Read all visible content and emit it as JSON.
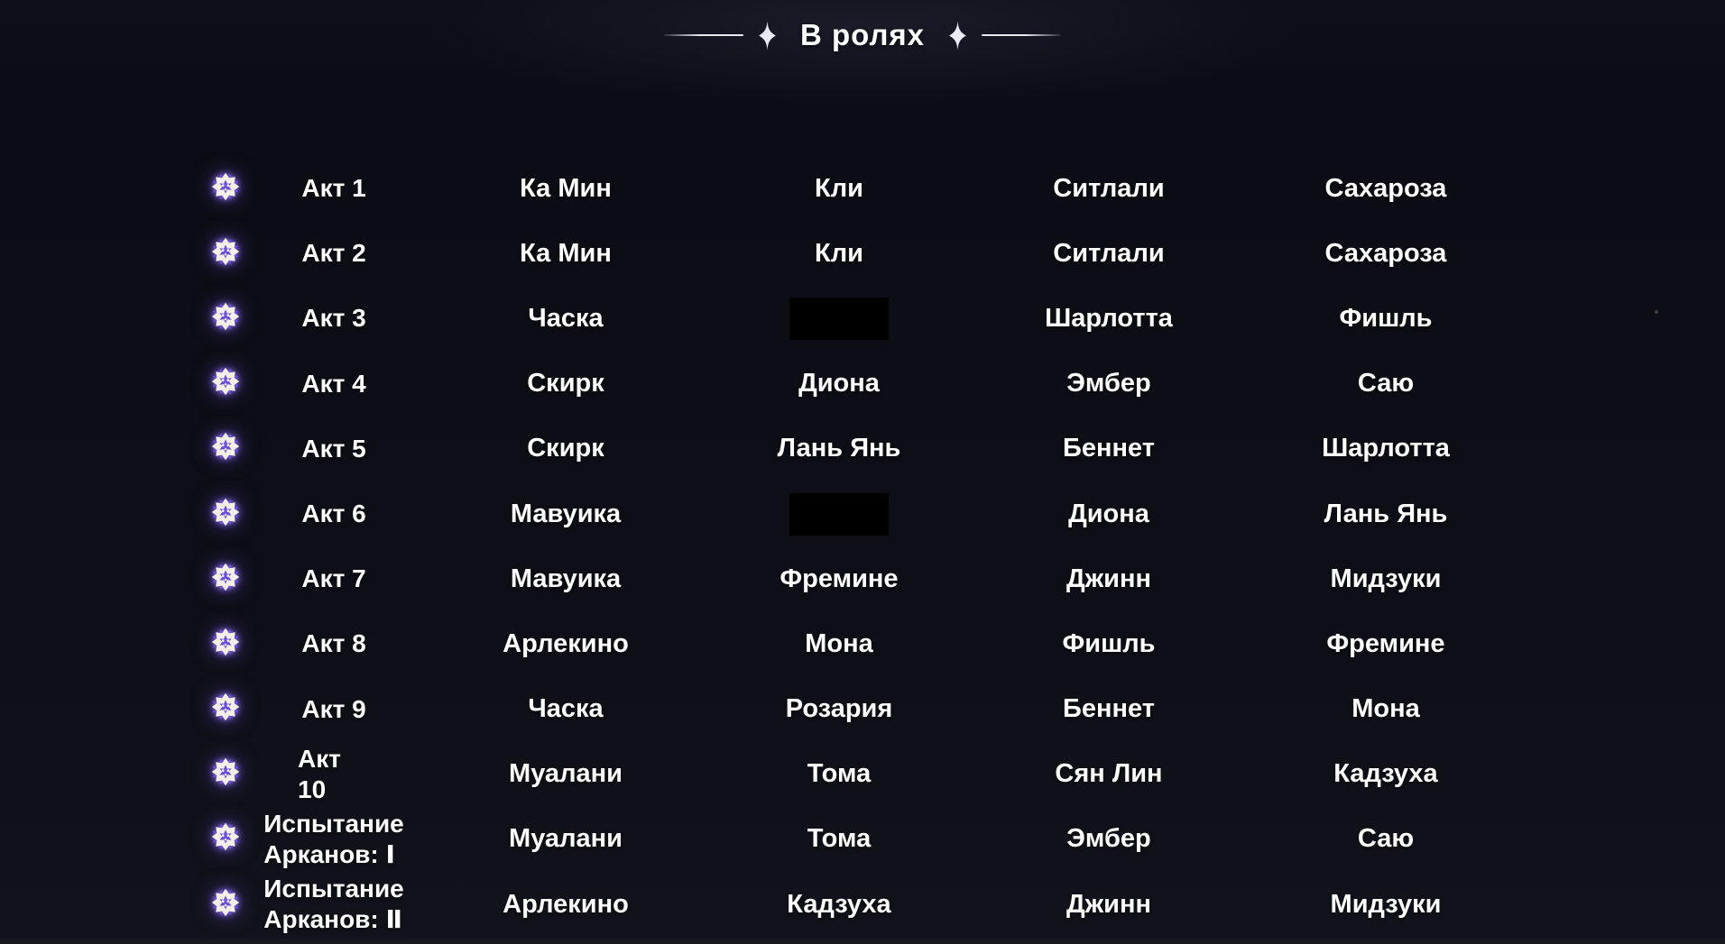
{
  "title": {
    "text": "В ролях"
  },
  "colors": {
    "background": "#0d0d16",
    "text": "#ffffff",
    "accent_purple": "#6b4ee0",
    "icon_cream": "#f4efe7",
    "redacted": "#000000"
  },
  "icons": {
    "row_marker": "star-flower-icon",
    "title_decor": "sparkle-icon"
  },
  "cast_table": {
    "rows": [
      {
        "act": "Акт 1",
        "cast": [
          "Ка Мин",
          "Кли",
          "Ситлали",
          "Сахароза"
        ],
        "redacted": []
      },
      {
        "act": "Акт 2",
        "cast": [
          "Ка Мин",
          "Кли",
          "Ситлали",
          "Сахароза"
        ],
        "redacted": []
      },
      {
        "act": "Акт 3",
        "cast": [
          "Часка",
          "",
          "Шарлотта",
          "Фишль"
        ],
        "redacted": [
          1
        ]
      },
      {
        "act": "Акт 4",
        "cast": [
          "Скирк",
          "Диона",
          "Эмбер",
          "Саю"
        ],
        "redacted": []
      },
      {
        "act": "Акт 5",
        "cast": [
          "Скирк",
          "Лань Янь",
          "Беннет",
          "Шарлотта"
        ],
        "redacted": []
      },
      {
        "act": "Акт 6",
        "cast": [
          "Мавуика",
          "",
          "Диона",
          "Лань Янь"
        ],
        "redacted": [
          1
        ]
      },
      {
        "act": "Акт 7",
        "cast": [
          "Мавуика",
          "Фремине",
          "Джинн",
          "Мидзуки"
        ],
        "redacted": []
      },
      {
        "act": "Акт 8",
        "cast": [
          "Арлекино",
          "Мона",
          "Фишль",
          "Фремине"
        ],
        "redacted": []
      },
      {
        "act": "Акт 9",
        "cast": [
          "Часка",
          "Розария",
          "Беннет",
          "Мона"
        ],
        "redacted": []
      },
      {
        "act": "Акт 10",
        "cast": [
          "Муалани",
          "Тома",
          "Сян Лин",
          "Кадзуха"
        ],
        "redacted": []
      },
      {
        "act": "Испытание\nАрканов: Ⅰ",
        "cast": [
          "Муалани",
          "Тома",
          "Эмбер",
          "Саю"
        ],
        "redacted": []
      },
      {
        "act": "Испытание\nАрканов: Ⅱ",
        "cast": [
          "Арлекино",
          "Кадзуха",
          "Джинн",
          "Мидзуки"
        ],
        "redacted": []
      }
    ]
  }
}
